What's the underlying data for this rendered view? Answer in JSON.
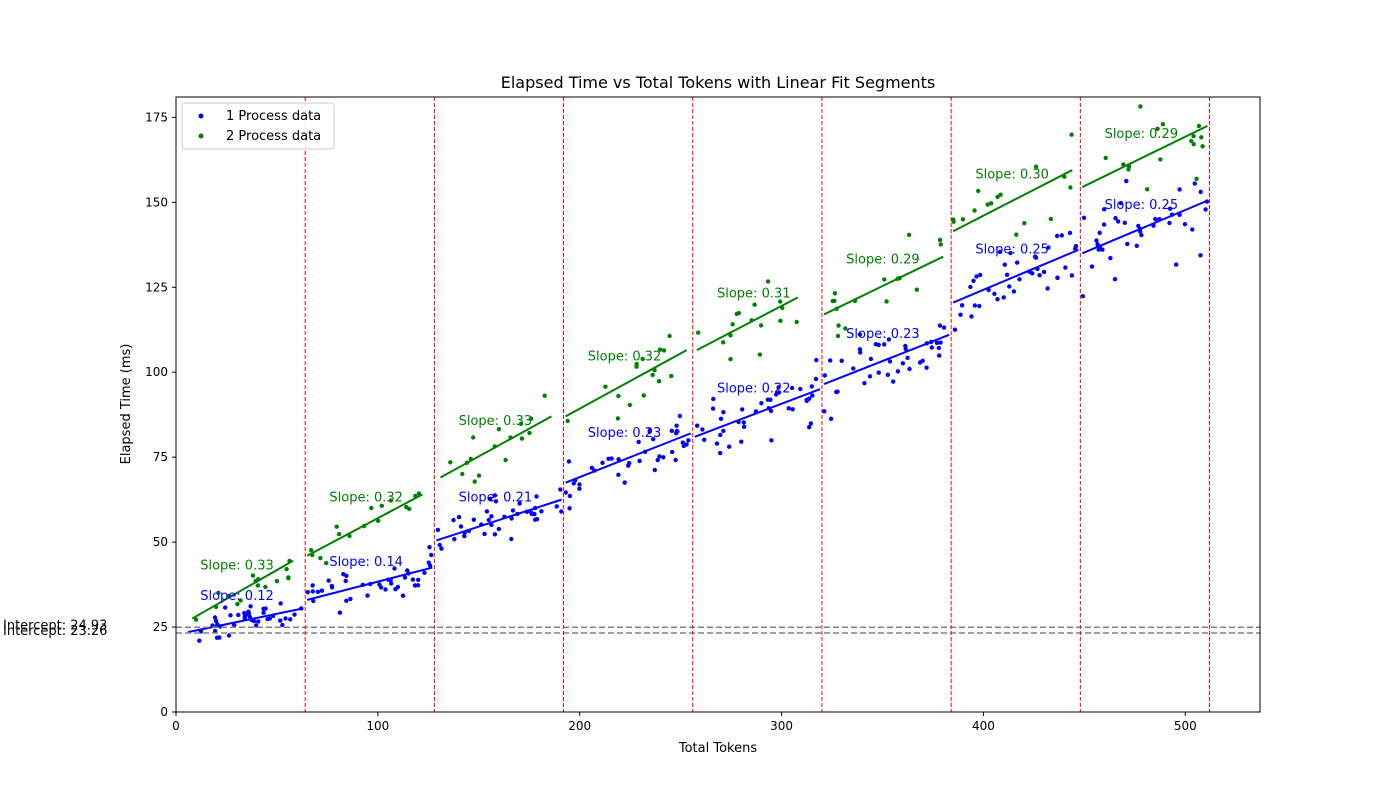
{
  "chart_data": {
    "type": "scatter",
    "title": "Elapsed Time vs Total Tokens with Linear Fit Segments",
    "xlabel": "Total Tokens",
    "ylabel": "Elapsed Time (ms)",
    "xlim": [
      0,
      537
    ],
    "ylim": [
      0,
      181
    ],
    "xticks": [
      0,
      100,
      200,
      300,
      400,
      500
    ],
    "yticks": [
      0,
      25,
      50,
      75,
      100,
      125,
      150,
      175
    ],
    "grid": false,
    "legend": {
      "position": "top-left",
      "entries": [
        "1 Process data",
        "2 Process data"
      ]
    },
    "segment_boundaries": [
      64,
      128,
      192,
      256,
      320,
      384,
      448,
      512
    ],
    "intercepts": [
      {
        "label": "Intercept: 24.93",
        "value": 24.93
      },
      {
        "label": "Intercept: 23.26",
        "value": 23.26
      }
    ],
    "series": [
      {
        "name": "1 Process data",
        "color": "#0000ff",
        "segments": [
          {
            "x0": 6,
            "x1": 63,
            "slope": 0.12,
            "y_start": 23.5,
            "y_end": 30.5,
            "label": "Slope: 0.12",
            "label_x": 12,
            "label_y": 33
          },
          {
            "x0": 65,
            "x1": 127,
            "slope": 0.14,
            "y_start": 33,
            "y_end": 42.5,
            "label": "Slope: 0.14",
            "label_x": 76,
            "label_y": 43
          },
          {
            "x0": 129,
            "x1": 191,
            "slope": 0.21,
            "y_start": 50.5,
            "y_end": 62.5,
            "label": "Slope: 0.21",
            "label_x": 140,
            "label_y": 62
          },
          {
            "x0": 193,
            "x1": 255,
            "slope": 0.23,
            "y_start": 67.5,
            "y_end": 82,
            "label": "Slope: 0.23",
            "label_x": 204,
            "label_y": 81
          },
          {
            "x0": 257,
            "x1": 319,
            "slope": 0.22,
            "y_start": 81,
            "y_end": 95,
            "label": "Slope: 0.22",
            "label_x": 268,
            "label_y": 94
          },
          {
            "x0": 321,
            "x1": 383,
            "slope": 0.23,
            "y_start": 96.5,
            "y_end": 111,
            "label": "Slope: 0.23",
            "label_x": 332,
            "label_y": 110
          },
          {
            "x0": 385,
            "x1": 447,
            "slope": 0.25,
            "y_start": 120.5,
            "y_end": 136,
            "label": "Slope: 0.25",
            "label_x": 396,
            "label_y": 135
          },
          {
            "x0": 449,
            "x1": 511,
            "slope": 0.25,
            "y_start": 135,
            "y_end": 150.5,
            "label": "Slope: 0.25",
            "label_x": 460,
            "label_y": 148
          }
        ]
      },
      {
        "name": "2 Process data",
        "color": "#008000",
        "segments": [
          {
            "x0": 8,
            "x1": 58,
            "slope": 0.33,
            "y_start": 27.5,
            "y_end": 44.5,
            "label": "Slope: 0.33",
            "label_x": 12,
            "label_y": 42
          },
          {
            "x0": 65,
            "x1": 122,
            "slope": 0.32,
            "y_start": 46,
            "y_end": 64,
            "label": "Slope: 0.32",
            "label_x": 76,
            "label_y": 62
          },
          {
            "x0": 131,
            "x1": 186,
            "slope": 0.33,
            "y_start": 69,
            "y_end": 87,
            "label": "Slope: 0.33",
            "label_x": 140,
            "label_y": 84.5
          },
          {
            "x0": 193,
            "x1": 253,
            "slope": 0.32,
            "y_start": 87,
            "y_end": 106.5,
            "label": "Slope: 0.32",
            "label_x": 204,
            "label_y": 103.5
          },
          {
            "x0": 258,
            "x1": 308,
            "slope": 0.31,
            "y_start": 106.5,
            "y_end": 122,
            "label": "Slope: 0.31",
            "label_x": 268,
            "label_y": 122
          },
          {
            "x0": 321,
            "x1": 380,
            "slope": 0.29,
            "y_start": 117,
            "y_end": 134,
            "label": "Slope: 0.29",
            "label_x": 332,
            "label_y": 132
          },
          {
            "x0": 385,
            "x1": 444,
            "slope": 0.3,
            "y_start": 141.5,
            "y_end": 159.5,
            "label": "Slope: 0.30",
            "label_x": 396,
            "label_y": 157
          },
          {
            "x0": 449,
            "x1": 511,
            "slope": 0.29,
            "y_start": 154.5,
            "y_end": 172.5,
            "label": "Slope: 0.29",
            "label_x": 460,
            "label_y": 169
          }
        ]
      }
    ],
    "point_density": {
      "1 Process data": 40,
      "2 Process data": 16
    }
  }
}
